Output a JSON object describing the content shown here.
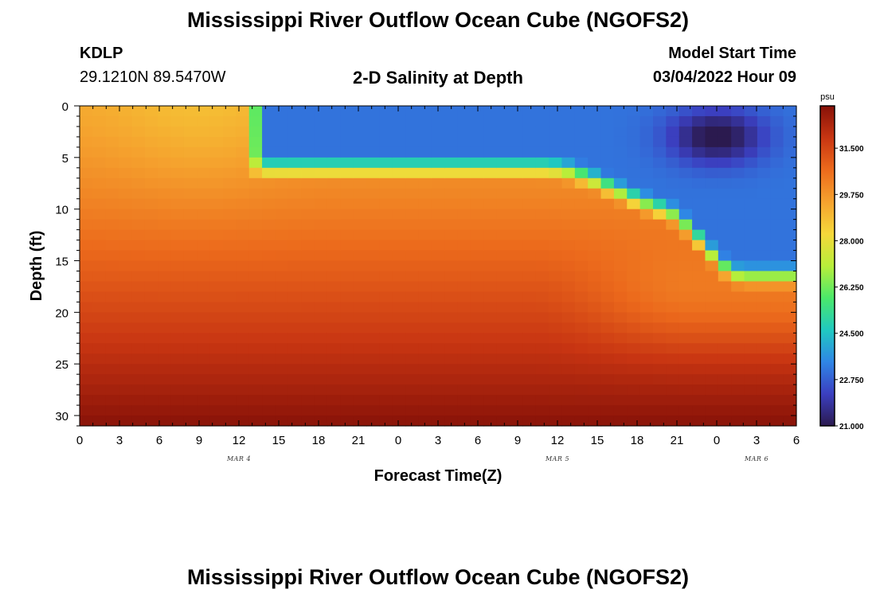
{
  "header": {
    "title": "Mississippi River Outflow Ocean Cube (NGOFS2)",
    "station_id": "KDLP",
    "station_coords": "29.1210N  89.5470W",
    "plot_title": "2-D Salinity at Depth",
    "model_start_label": "Model Start Time",
    "model_start_value": "03/04/2022 Hour 09"
  },
  "footer": {
    "title": "Mississippi River Outflow Ocean Cube (NGOFS2)"
  },
  "chart_data": {
    "type": "heatmap",
    "xlabel": "Forecast Time(Z)",
    "ylabel": "Depth (ft)",
    "x_range_hours": [
      0,
      54
    ],
    "y_range_ft": [
      0,
      31
    ],
    "y_inverted": true,
    "x_tick_labels": [
      "0",
      "3",
      "6",
      "9",
      "12",
      "15",
      "18",
      "21",
      "0",
      "3",
      "6",
      "9",
      "12",
      "15",
      "18",
      "21",
      "0",
      "3",
      "6"
    ],
    "y_tick_labels": [
      "0",
      "5",
      "10",
      "15",
      "20",
      "25",
      "30"
    ],
    "date_labels": [
      {
        "label": "MAR 4",
        "x_hour": 12
      },
      {
        "label": "MAR 5",
        "x_hour": 36
      },
      {
        "label": "MAR 6",
        "x_hour": 51
      }
    ],
    "colorbar": {
      "unit": "psu",
      "min": 21.0,
      "max": 33.1,
      "ticks": [
        "21.000",
        "22.750",
        "24.500",
        "26.250",
        "28.000",
        "29.750",
        "31.500"
      ],
      "colors": [
        "#2b1a4f",
        "#3b3fc0",
        "#2f86e6",
        "#20c9c0",
        "#4be86a",
        "#b8ee3a",
        "#f5d83a",
        "#f5a22e",
        "#ec6a1c",
        "#c83512",
        "#861108"
      ]
    },
    "salinity_field": {
      "description_free": true,
      "grid_cols": 55,
      "grid_rows": 31,
      "surface_salinity_hours_0_to_12": 29.4,
      "bottom_salinity_hours_0_to_12": 33.0,
      "plume_arrival_hour": 13,
      "plume_min_salinity": 21.0,
      "plume_min_location": {
        "hour": 48,
        "depth_ft": 3
      }
    }
  }
}
